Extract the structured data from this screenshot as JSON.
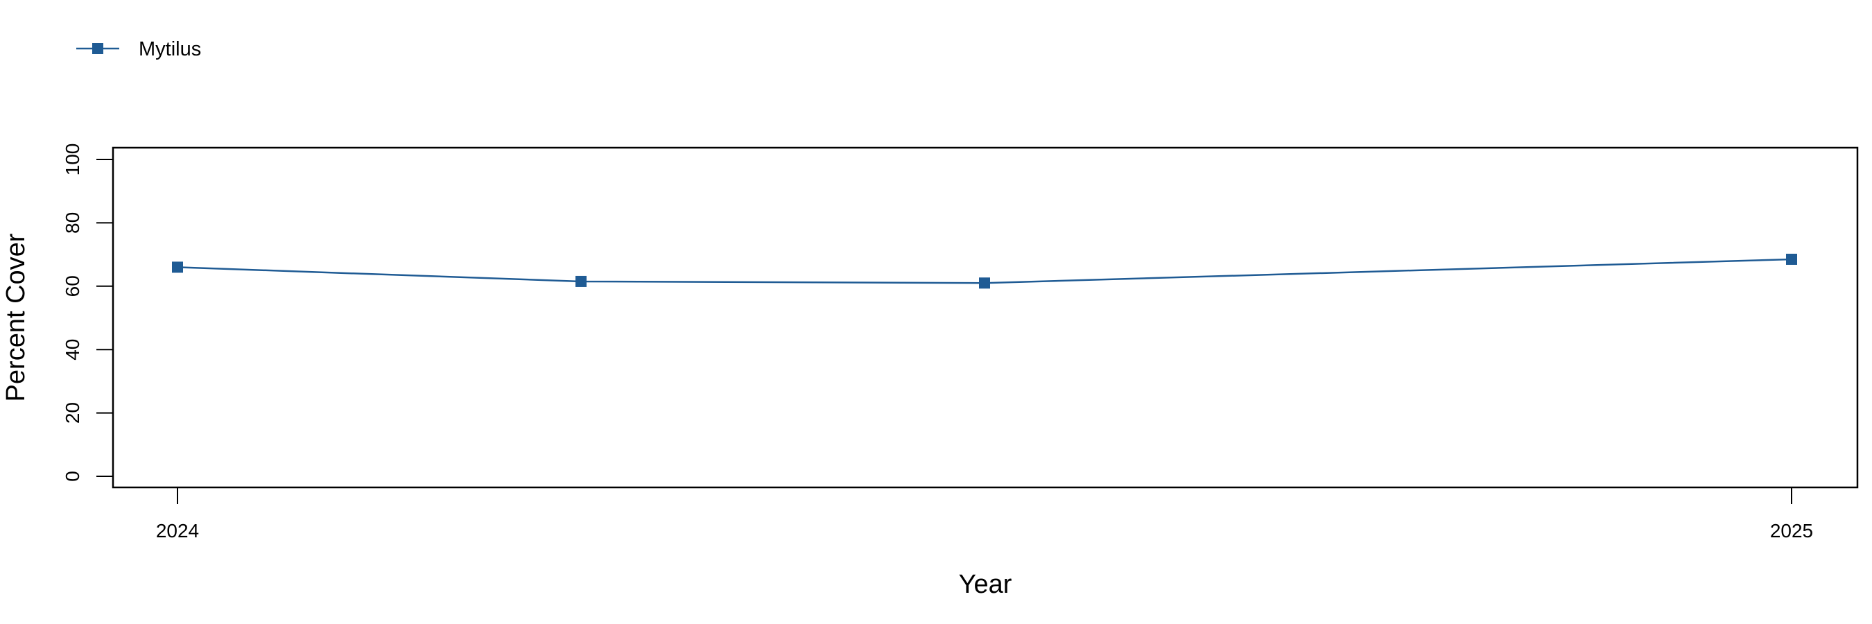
{
  "chart_data": {
    "type": "line",
    "xlabel": "Year",
    "ylabel": "Percent Cover",
    "ylim": [
      0,
      100
    ],
    "yticks": [
      0,
      20,
      40,
      60,
      80,
      100
    ],
    "xticks": [
      "2024",
      "2025"
    ],
    "legend_placement": "top-left",
    "grid": false,
    "series": [
      {
        "name": "Mytilus",
        "color": "#1f5b94",
        "marker": "square",
        "x": [
          "2024-01",
          "2024-04",
          "2024-07",
          "2025-01"
        ],
        "y": [
          66,
          61.5,
          61,
          68.5
        ]
      }
    ]
  }
}
